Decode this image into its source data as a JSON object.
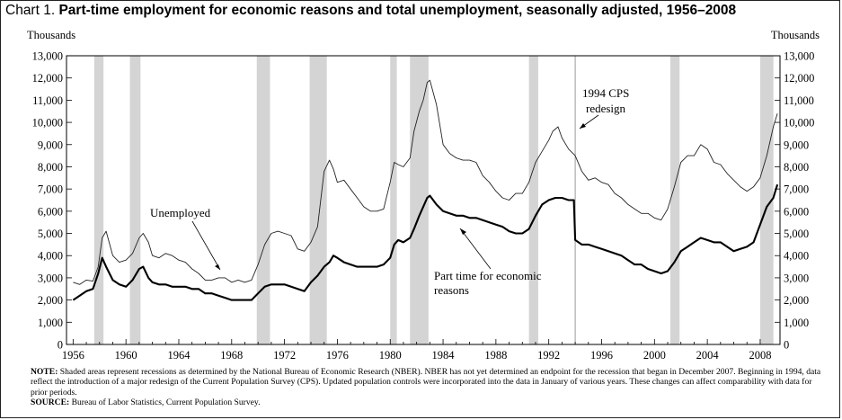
{
  "title": {
    "prefix": "Chart 1.",
    "main": "Part-time employment for economic reasons and total unemployment, seasonally adjusted, 1956–2008"
  },
  "note": {
    "label": "NOTE:",
    "text": "Shaded areas represent recessions as determined by the National Bureau of Economic Research (NBER).  NBER has not yet determined an endpoint for the recession that began in December 2007.  Beginning in 1994, data reflect the introduction of a major redesign of the Current Population Survey (CPS). Updated population controls were incorporated into the data in January of various years.  These changes can affect comparability with data for prior periods."
  },
  "source": {
    "label": "SOURCE:",
    "text": "Bureau of Labor Statistics, Current Population Survey."
  },
  "chart_data": {
    "type": "line",
    "ylabel_left": "Thousands",
    "ylabel_right": "Thousands",
    "ylim": [
      0,
      13000
    ],
    "yticks": [
      0,
      1000,
      2000,
      3000,
      4000,
      5000,
      6000,
      7000,
      8000,
      9000,
      10000,
      11000,
      12000,
      13000
    ],
    "ytick_labels": [
      "0",
      "1,000",
      "2,000",
      "3,000",
      "4,000",
      "5,000",
      "6,000",
      "7,000",
      "8,000",
      "9,000",
      "10,000",
      "11,000",
      "12,000",
      "13,000"
    ],
    "xlim": [
      1955.5,
      2009.5
    ],
    "xticks": [
      1956,
      1960,
      1964,
      1968,
      1972,
      1976,
      1980,
      1984,
      1988,
      1992,
      1996,
      2000,
      2004,
      2008
    ],
    "recessions": [
      [
        1957.6,
        1958.3
      ],
      [
        1960.3,
        1961.1
      ],
      [
        1969.9,
        1970.9
      ],
      [
        1973.9,
        1975.2
      ],
      [
        1980.0,
        1980.5
      ],
      [
        1981.5,
        1982.9
      ],
      [
        1990.5,
        1991.2
      ],
      [
        2001.2,
        2001.9
      ],
      [
        2008.0,
        2009.0
      ]
    ],
    "redesign_line": 1994.0,
    "annotations": {
      "redesign": [
        "1994 CPS",
        "redesign"
      ],
      "unemployed": "Unemployed",
      "parttime": [
        "Part time for economic",
        "reasons"
      ]
    },
    "series": [
      {
        "name": "Unemployed",
        "x": [
          1956.0,
          1956.5,
          1957.0,
          1957.5,
          1957.9,
          1958.2,
          1958.5,
          1959.0,
          1959.5,
          1960.0,
          1960.5,
          1961.0,
          1961.3,
          1961.7,
          1962.0,
          1962.5,
          1963.0,
          1963.5,
          1964.0,
          1964.5,
          1965.0,
          1965.5,
          1966.0,
          1966.5,
          1967.0,
          1967.5,
          1968.0,
          1968.5,
          1969.0,
          1969.5,
          1970.0,
          1970.5,
          1971.0,
          1971.5,
          1972.0,
          1972.5,
          1973.0,
          1973.5,
          1974.0,
          1974.5,
          1975.0,
          1975.4,
          1975.7,
          1976.0,
          1976.5,
          1977.0,
          1977.5,
          1978.0,
          1978.5,
          1979.0,
          1979.5,
          1980.0,
          1980.3,
          1980.6,
          1981.0,
          1981.5,
          1981.8,
          1982.2,
          1982.5,
          1982.8,
          1983.0,
          1983.5,
          1984.0,
          1984.5,
          1985.0,
          1985.5,
          1986.0,
          1986.5,
          1987.0,
          1987.5,
          1988.0,
          1988.5,
          1989.0,
          1989.5,
          1990.0,
          1990.5,
          1991.0,
          1991.5,
          1992.0,
          1992.3,
          1992.7,
          1993.0,
          1993.5,
          1994.0,
          1994.5,
          1995.0,
          1995.5,
          1996.0,
          1996.5,
          1997.0,
          1997.5,
          1998.0,
          1998.5,
          1999.0,
          1999.5,
          2000.0,
          2000.5,
          2001.0,
          2001.5,
          2002.0,
          2002.5,
          2003.0,
          2003.5,
          2004.0,
          2004.5,
          2005.0,
          2005.5,
          2006.0,
          2006.5,
          2007.0,
          2007.5,
          2008.0,
          2008.5,
          2009.0,
          2009.3
        ],
        "values": [
          2800,
          2700,
          2900,
          2850,
          3500,
          4800,
          5100,
          4000,
          3700,
          3800,
          4100,
          4800,
          5000,
          4600,
          4000,
          3900,
          4100,
          4000,
          3800,
          3700,
          3400,
          3200,
          2900,
          2900,
          3000,
          3000,
          2800,
          2900,
          2800,
          2900,
          3600,
          4500,
          5000,
          5100,
          5000,
          4900,
          4300,
          4200,
          4600,
          5300,
          7800,
          8300,
          7900,
          7300,
          7400,
          7000,
          6600,
          6200,
          6000,
          6000,
          6100,
          7300,
          8200,
          8100,
          8000,
          8400,
          9600,
          10500,
          11000,
          11800,
          11900,
          10800,
          9000,
          8600,
          8400,
          8300,
          8300,
          8200,
          7600,
          7300,
          6900,
          6600,
          6500,
          6800,
          6800,
          7300,
          8200,
          8700,
          9200,
          9600,
          9800,
          9300,
          8800,
          8500,
          7800,
          7400,
          7500,
          7300,
          7200,
          6800,
          6600,
          6300,
          6100,
          5900,
          5900,
          5700,
          5600,
          6100,
          7100,
          8200,
          8500,
          8500,
          9000,
          8800,
          8200,
          8100,
          7700,
          7400,
          7100,
          6900,
          7100,
          7500,
          8500,
          9800,
          10400
        ]
      },
      {
        "name": "Part time for economic reasons",
        "x": [
          1956.0,
          1956.5,
          1957.0,
          1957.5,
          1957.9,
          1958.2,
          1958.5,
          1959.0,
          1959.5,
          1960.0,
          1960.5,
          1961.0,
          1961.3,
          1961.7,
          1962.0,
          1962.5,
          1963.0,
          1963.5,
          1964.0,
          1964.5,
          1965.0,
          1965.5,
          1966.0,
          1966.5,
          1967.0,
          1967.5,
          1968.0,
          1968.5,
          1969.0,
          1969.5,
          1970.0,
          1970.5,
          1971.0,
          1971.5,
          1972.0,
          1972.5,
          1973.0,
          1973.5,
          1974.0,
          1974.5,
          1975.0,
          1975.4,
          1975.7,
          1976.0,
          1976.5,
          1977.0,
          1977.5,
          1978.0,
          1978.5,
          1979.0,
          1979.5,
          1980.0,
          1980.3,
          1980.6,
          1981.0,
          1981.5,
          1981.8,
          1982.2,
          1982.5,
          1982.8,
          1983.0,
          1983.5,
          1984.0,
          1984.5,
          1985.0,
          1985.5,
          1986.0,
          1986.5,
          1987.0,
          1987.5,
          1988.0,
          1988.5,
          1989.0,
          1989.5,
          1990.0,
          1990.5,
          1991.0,
          1991.5,
          1992.0,
          1992.5,
          1993.0,
          1993.5,
          1993.9,
          1994.0,
          1994.5,
          1995.0,
          1995.5,
          1996.0,
          1996.5,
          1997.0,
          1997.5,
          1998.0,
          1998.5,
          1999.0,
          1999.5,
          2000.0,
          2000.5,
          2001.0,
          2001.5,
          2002.0,
          2002.5,
          2003.0,
          2003.5,
          2004.0,
          2004.5,
          2005.0,
          2005.5,
          2006.0,
          2006.5,
          2007.0,
          2007.5,
          2008.0,
          2008.5,
          2009.0,
          2009.3
        ],
        "values": [
          2000,
          2200,
          2400,
          2500,
          3200,
          3900,
          3500,
          2900,
          2700,
          2600,
          2900,
          3400,
          3500,
          3000,
          2800,
          2700,
          2700,
          2600,
          2600,
          2600,
          2500,
          2500,
          2300,
          2300,
          2200,
          2100,
          2000,
          2000,
          2000,
          2000,
          2300,
          2600,
          2700,
          2700,
          2700,
          2600,
          2500,
          2400,
          2800,
          3100,
          3500,
          3700,
          4000,
          3900,
          3700,
          3600,
          3500,
          3500,
          3500,
          3500,
          3600,
          3900,
          4500,
          4700,
          4600,
          4800,
          5200,
          5800,
          6200,
          6600,
          6700,
          6300,
          6000,
          5900,
          5800,
          5800,
          5700,
          5700,
          5600,
          5500,
          5400,
          5300,
          5100,
          5000,
          5000,
          5200,
          5800,
          6300,
          6500,
          6600,
          6600,
          6500,
          6500,
          4700,
          4500,
          4500,
          4400,
          4300,
          4200,
          4100,
          4000,
          3800,
          3600,
          3600,
          3400,
          3300,
          3200,
          3300,
          3700,
          4200,
          4400,
          4600,
          4800,
          4700,
          4600,
          4600,
          4400,
          4200,
          4300,
          4400,
          4600,
          5400,
          6200,
          6600,
          7200
        ]
      }
    ]
  }
}
